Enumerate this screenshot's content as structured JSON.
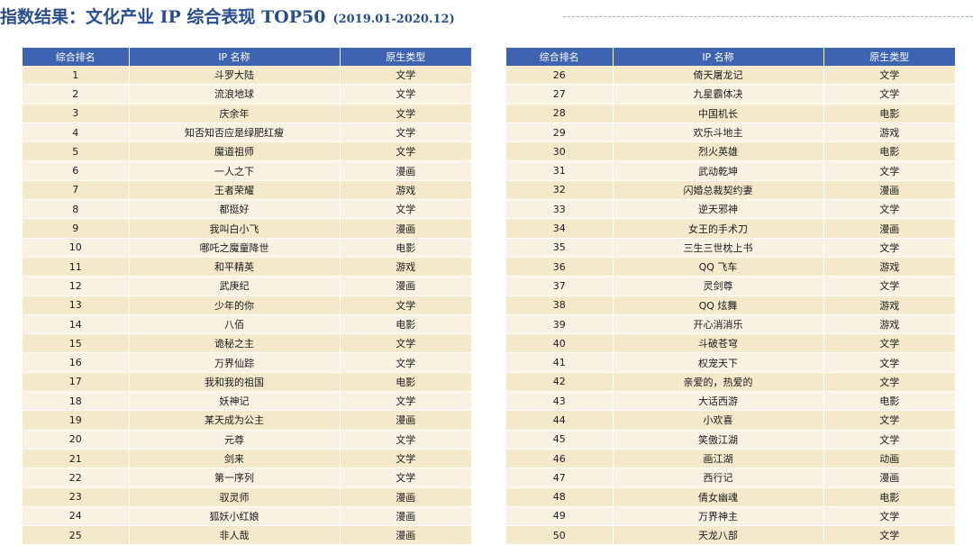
{
  "header": {
    "title": "指数结果：文化产业 IP 综合表现 TOP50",
    "date_range": "(2019.01-2020.12)"
  },
  "table_headers": {
    "rank": "综合排名",
    "name": "IP 名称",
    "type": "原生类型"
  },
  "left_rows": [
    {
      "rank": "1",
      "name": "斗罗大陆",
      "type": "文学"
    },
    {
      "rank": "2",
      "name": "流浪地球",
      "type": "文学"
    },
    {
      "rank": "3",
      "name": "庆余年",
      "type": "文学"
    },
    {
      "rank": "4",
      "name": "知否知否应是绿肥红瘦",
      "type": "文学"
    },
    {
      "rank": "5",
      "name": "魔道祖师",
      "type": "文学"
    },
    {
      "rank": "6",
      "name": "一人之下",
      "type": "漫画"
    },
    {
      "rank": "7",
      "name": "王者荣耀",
      "type": "游戏"
    },
    {
      "rank": "8",
      "name": "都挺好",
      "type": "文学"
    },
    {
      "rank": "9",
      "name": "我叫白小飞",
      "type": "漫画"
    },
    {
      "rank": "10",
      "name": "哪吒之魔童降世",
      "type": "电影"
    },
    {
      "rank": "11",
      "name": "和平精英",
      "type": "游戏"
    },
    {
      "rank": "12",
      "name": "武庚纪",
      "type": "漫画"
    },
    {
      "rank": "13",
      "name": "少年的你",
      "type": "文学"
    },
    {
      "rank": "14",
      "name": "八佰",
      "type": "电影"
    },
    {
      "rank": "15",
      "name": "诡秘之主",
      "type": "文学"
    },
    {
      "rank": "16",
      "name": "万界仙踪",
      "type": "文学"
    },
    {
      "rank": "17",
      "name": "我和我的祖国",
      "type": "电影"
    },
    {
      "rank": "18",
      "name": "妖神记",
      "type": "文学"
    },
    {
      "rank": "19",
      "name": "某天成为公主",
      "type": "漫画"
    },
    {
      "rank": "20",
      "name": "元尊",
      "type": "文学"
    },
    {
      "rank": "21",
      "name": "剑来",
      "type": "文学"
    },
    {
      "rank": "22",
      "name": "第一序列",
      "type": "文学"
    },
    {
      "rank": "23",
      "name": "驭灵师",
      "type": "漫画"
    },
    {
      "rank": "24",
      "name": "狐妖小红娘",
      "type": "漫画"
    },
    {
      "rank": "25",
      "name": "非人哉",
      "type": "漫画"
    }
  ],
  "right_rows": [
    {
      "rank": "26",
      "name": "倚天屠龙记",
      "type": "文学"
    },
    {
      "rank": "27",
      "name": "九星霸体决",
      "type": "文学"
    },
    {
      "rank": "28",
      "name": "中国机长",
      "type": "电影"
    },
    {
      "rank": "29",
      "name": "欢乐斗地主",
      "type": "游戏"
    },
    {
      "rank": "30",
      "name": "烈火英雄",
      "type": "电影"
    },
    {
      "rank": "31",
      "name": "武动乾坤",
      "type": "文学"
    },
    {
      "rank": "32",
      "name": "闪婚总裁契约妻",
      "type": "漫画"
    },
    {
      "rank": "33",
      "name": "逆天邪神",
      "type": "文学"
    },
    {
      "rank": "34",
      "name": "女王的手术刀",
      "type": "漫画"
    },
    {
      "rank": "35",
      "name": "三生三世枕上书",
      "type": "文学"
    },
    {
      "rank": "36",
      "name": "QQ 飞车",
      "type": "游戏"
    },
    {
      "rank": "37",
      "name": "灵剑尊",
      "type": "文学"
    },
    {
      "rank": "38",
      "name": "QQ 炫舞",
      "type": "游戏"
    },
    {
      "rank": "39",
      "name": "开心消消乐",
      "type": "游戏"
    },
    {
      "rank": "40",
      "name": "斗破苍穹",
      "type": "文学"
    },
    {
      "rank": "41",
      "name": "权宠天下",
      "type": "文学"
    },
    {
      "rank": "42",
      "name": "亲爱的，热爱的",
      "type": "文学"
    },
    {
      "rank": "43",
      "name": "大话西游",
      "type": "电影"
    },
    {
      "rank": "44",
      "name": "小欢喜",
      "type": "文学"
    },
    {
      "rank": "45",
      "name": "笑傲江湖",
      "type": "文学"
    },
    {
      "rank": "46",
      "name": "画江湖",
      "type": "动画"
    },
    {
      "rank": "47",
      "name": "西行记",
      "type": "漫画"
    },
    {
      "rank": "48",
      "name": "倩女幽魂",
      "type": "电影"
    },
    {
      "rank": "49",
      "name": "万界神主",
      "type": "文学"
    },
    {
      "rank": "50",
      "name": "天龙八部",
      "type": "文学"
    }
  ]
}
